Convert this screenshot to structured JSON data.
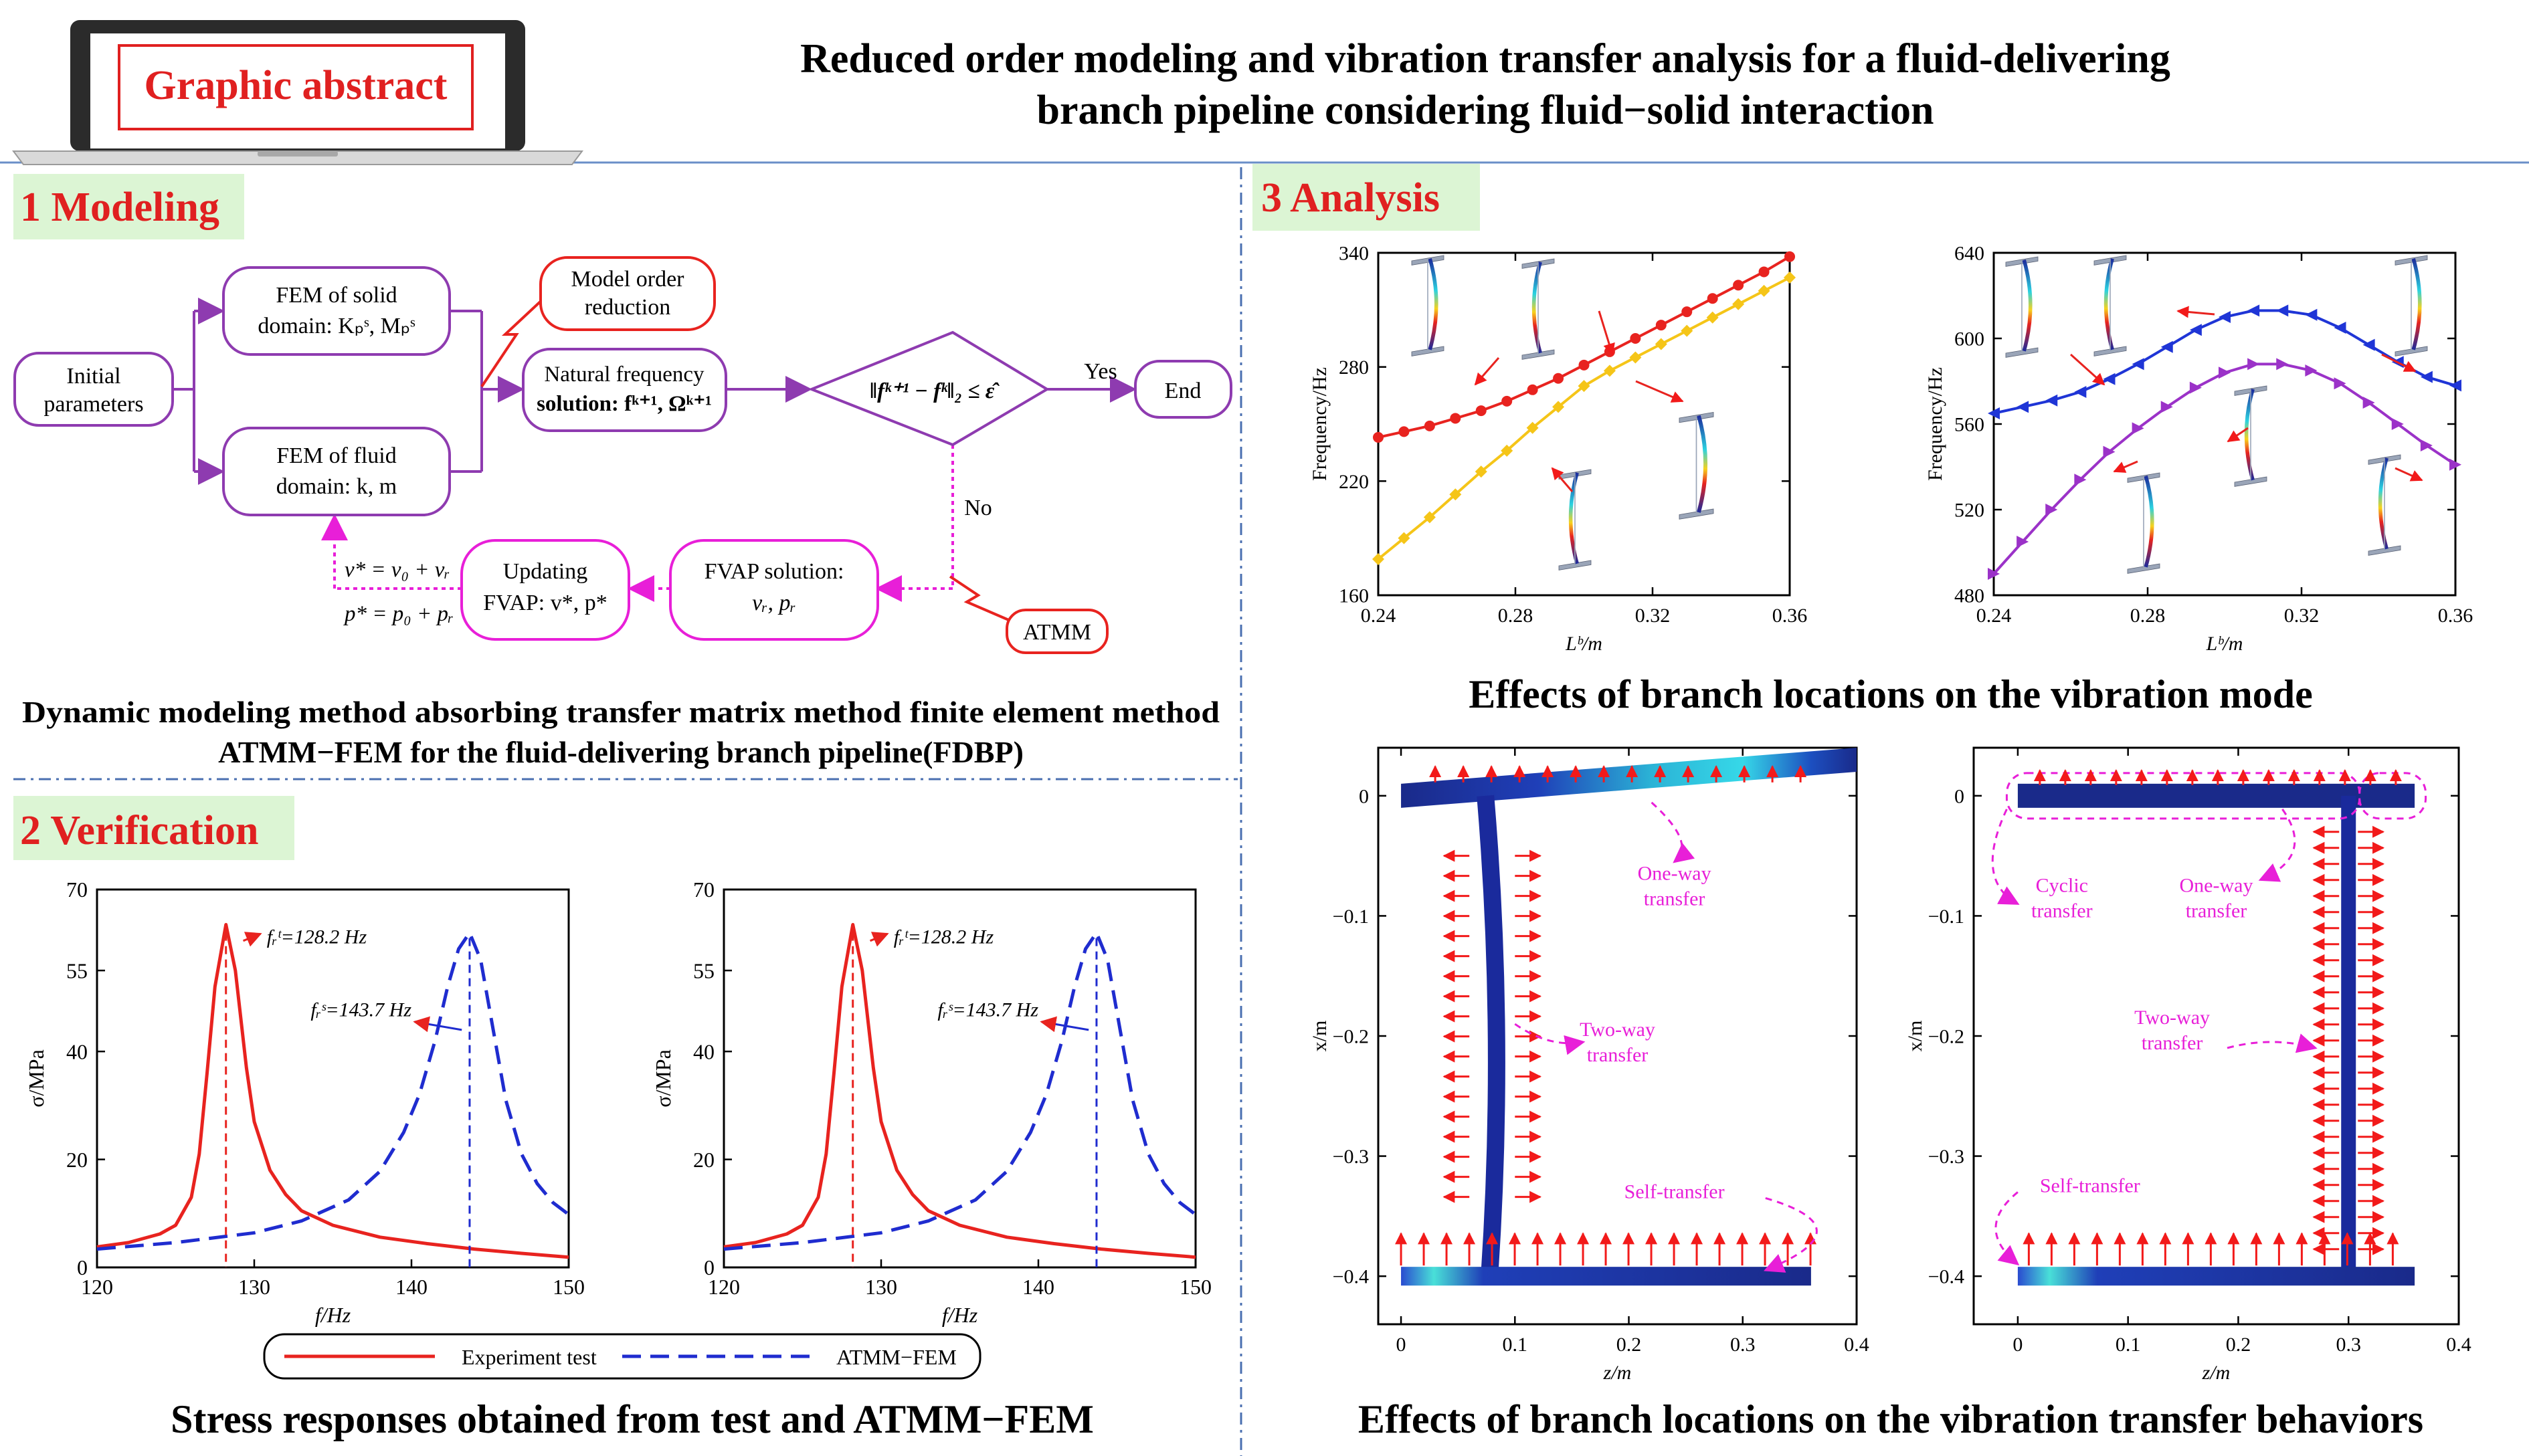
{
  "header": {
    "badge": "Graphic abstract",
    "title_lines": [
      "Reduced order modeling and vibration transfer analysis for a fluid-delivering",
      "branch pipeline considering fluid−solid interaction"
    ]
  },
  "modeling": {
    "heading": "1 Modeling",
    "nodes": {
      "initial": [
        "Initial",
        "parameters"
      ],
      "fem_solid": [
        "FEM of solid",
        "domain: Kₚˢ, Mₚˢ"
      ],
      "fem_fluid": [
        "FEM of fluid",
        "domain: k, m"
      ],
      "model_order": [
        "Model order",
        "reduction"
      ],
      "natural_freq": [
        "Natural frequency",
        "solution: fᵏ⁺¹, Ωᵏ⁺¹"
      ],
      "criterion": "‖fᵏ⁺¹ − fᵏ‖₂ ≤ ε̂",
      "yes": "Yes",
      "no": "No",
      "end": "End",
      "fvap_solution": [
        "FVAP solution:",
        "vᵣ, pᵣ"
      ],
      "updating": [
        "Updating",
        "FVAP: v*, p*"
      ],
      "atmm": "ATMM",
      "v_eq": "v* = v₀ + vᵣ",
      "p_eq": "p* = p₀ + pᵣ"
    },
    "caption": [
      "Dynamic modeling method absorbing transfer matrix method finite element method",
      "ATMM−FEM for the fluid-delivering branch pipeline(FDBP)"
    ]
  },
  "verification": {
    "heading": "2 Verification",
    "caption": "Stress responses obtained from test and ATMM−FEM",
    "legend": {
      "experiment": "Experiment test",
      "atmm": "ATMM−FEM"
    },
    "annot_exp": "fᵣᵗ=128.2 Hz",
    "annot_sim": "fᵣˢ=143.7 Hz"
  },
  "analysis": {
    "heading": "3 Analysis",
    "caption_mode": "Effects of branch locations on the vibration mode",
    "caption_transfer": "Effects of branch locations on the vibration transfer behaviors",
    "labels": {
      "one_way": [
        "One-way",
        "transfer"
      ],
      "two_way": [
        "Two-way",
        "transfer"
      ],
      "self": "Self-transfer",
      "cyclic": [
        "Cyclic",
        "transfer"
      ]
    }
  },
  "chart_data": [
    {
      "type": "line",
      "panel": "verification-left",
      "xlabel": "f/Hz",
      "ylabel": "σ/MPa",
      "xlim": [
        120,
        150
      ],
      "ylim": [
        0,
        70
      ],
      "xticks": [
        120,
        130,
        140,
        150
      ],
      "yticks": [
        0,
        20,
        40,
        55,
        70
      ],
      "series": [
        {
          "name": "Experiment test",
          "color": "#e8231f",
          "style": "solid",
          "x": [
            120,
            122,
            124,
            125,
            126,
            126.5,
            127,
            127.5,
            128.2,
            128.8,
            129.5,
            130,
            131,
            132,
            133,
            135,
            138,
            141,
            144,
            147,
            150
          ],
          "y": [
            3.8,
            4.6,
            6.2,
            7.8,
            13,
            21,
            36,
            52,
            63.5,
            55,
            37,
            27,
            18,
            13.5,
            10.5,
            7.8,
            5.6,
            4.4,
            3.4,
            2.6,
            1.9
          ]
        },
        {
          "name": "ATMM−FEM",
          "color": "#1f2ccf",
          "style": "dashed",
          "x": [
            120,
            125,
            130,
            133,
            136,
            138,
            139.5,
            140.5,
            141.5,
            142.3,
            143,
            143.7,
            144.4,
            145.2,
            146,
            147,
            148,
            149,
            150
          ],
          "y": [
            3.4,
            4.6,
            6.4,
            8.6,
            12.5,
            17.8,
            25,
            32,
            42,
            52,
            59,
            62,
            57,
            44,
            31,
            21,
            15.5,
            12,
            9.8
          ]
        }
      ]
    },
    {
      "type": "line",
      "panel": "verification-right",
      "xlabel": "f/Hz",
      "ylabel": "σ/MPa",
      "xlim": [
        120,
        150
      ],
      "ylim": [
        0,
        70
      ],
      "xticks": [
        120,
        130,
        140,
        150
      ],
      "yticks": [
        0,
        20,
        40,
        55,
        70
      ],
      "series": [
        {
          "name": "Experiment test",
          "color": "#e8231f",
          "style": "solid",
          "x": [
            120,
            122,
            124,
            125,
            126,
            126.5,
            127,
            127.5,
            128.2,
            128.8,
            129.5,
            130,
            131,
            132,
            133,
            135,
            138,
            141,
            144,
            147,
            150
          ],
          "y": [
            3.8,
            4.6,
            6.2,
            7.8,
            13,
            21,
            36,
            52,
            63.5,
            55,
            37,
            27,
            18,
            13.5,
            10.5,
            7.8,
            5.6,
            4.4,
            3.4,
            2.6,
            1.9
          ]
        },
        {
          "name": "ATMM−FEM",
          "color": "#1f2ccf",
          "style": "dashed",
          "x": [
            120,
            125,
            130,
            133,
            136,
            138,
            139.5,
            140.5,
            141.5,
            142.3,
            143,
            143.7,
            144.4,
            145.2,
            146,
            147,
            148,
            149,
            150
          ],
          "y": [
            3.4,
            4.6,
            6.4,
            8.6,
            12.5,
            17.8,
            25,
            32,
            42,
            52,
            59,
            62,
            57,
            44,
            31,
            21,
            15.5,
            12,
            9.8
          ]
        }
      ]
    },
    {
      "type": "line",
      "panel": "analysis-freq-left",
      "xlabel": "Lᵇ/m",
      "ylabel": "Frequency/Hz",
      "xlim": [
        0.24,
        0.36
      ],
      "ylim": [
        160,
        340
      ],
      "xticks": [
        0.24,
        0.28,
        0.32,
        0.36
      ],
      "yticks": [
        160,
        220,
        280,
        340
      ],
      "series": [
        {
          "color": "#e8231f",
          "marker": "circle",
          "x": [
            0.24,
            0.2475,
            0.255,
            0.2625,
            0.27,
            0.2775,
            0.285,
            0.2925,
            0.3,
            0.3075,
            0.315,
            0.3225,
            0.33,
            0.3375,
            0.345,
            0.3525,
            0.36
          ],
          "y": [
            243,
            246,
            249,
            253,
            257,
            262,
            268,
            274,
            281,
            288,
            295,
            302,
            309,
            316,
            323,
            330,
            338
          ]
        },
        {
          "color": "#f5c518",
          "marker": "diamond",
          "x": [
            0.24,
            0.2475,
            0.255,
            0.2625,
            0.27,
            0.2775,
            0.285,
            0.2925,
            0.3,
            0.3075,
            0.315,
            0.3225,
            0.33,
            0.3375,
            0.345,
            0.3525,
            0.36
          ],
          "y": [
            179,
            190,
            201,
            213,
            225,
            236,
            248,
            259,
            270,
            278,
            285,
            292,
            299,
            306,
            313,
            320,
            327
          ]
        }
      ]
    },
    {
      "type": "line",
      "panel": "analysis-freq-right",
      "xlabel": "Lᵇ/m",
      "ylabel": "Frequency/Hz",
      "xlim": [
        0.24,
        0.36
      ],
      "ylim": [
        480,
        640
      ],
      "xticks": [
        0.24,
        0.28,
        0.32,
        0.36
      ],
      "yticks": [
        480,
        520,
        560,
        600,
        640
      ],
      "series": [
        {
          "color": "#1f35d6",
          "marker": "triangle-left",
          "x": [
            0.24,
            0.2475,
            0.255,
            0.2625,
            0.27,
            0.2775,
            0.285,
            0.2925,
            0.3,
            0.3075,
            0.315,
            0.3225,
            0.33,
            0.3375,
            0.345,
            0.3525,
            0.36
          ],
          "y": [
            565,
            568,
            571,
            575,
            581,
            588,
            596,
            604,
            610,
            613,
            613,
            611,
            605,
            597,
            589,
            582,
            578
          ]
        },
        {
          "color": "#9b32c8",
          "marker": "triangle-right",
          "x": [
            0.24,
            0.2475,
            0.255,
            0.2625,
            0.27,
            0.2775,
            0.285,
            0.2925,
            0.3,
            0.3075,
            0.315,
            0.3225,
            0.33,
            0.3375,
            0.345,
            0.3525,
            0.36
          ],
          "y": [
            490,
            505,
            520,
            534,
            547,
            558,
            568,
            577,
            584,
            588,
            588,
            585,
            579,
            570,
            560,
            550,
            541
          ]
        }
      ]
    },
    {
      "type": "scatter",
      "panel": "analysis-transfer-left",
      "xlabel": "z/m",
      "ylabel": "x/m",
      "xlim": [
        -0.02,
        0.4
      ],
      "ylim": [
        -0.44,
        0.04
      ],
      "xticks": [
        0,
        0.1,
        0.2,
        0.3,
        0.4
      ],
      "yticks": [
        0,
        -0.1,
        -0.2,
        -0.3,
        -0.4
      ]
    },
    {
      "type": "scatter",
      "panel": "analysis-transfer-right",
      "xlabel": "z/m",
      "ylabel": "x/m",
      "xlim": [
        -0.04,
        0.4
      ],
      "ylim": [
        -0.44,
        0.04
      ],
      "xticks": [
        0,
        0.1,
        0.2,
        0.3,
        0.4
      ],
      "yticks": [
        0,
        -0.1,
        -0.2,
        -0.3,
        -0.4
      ]
    }
  ]
}
